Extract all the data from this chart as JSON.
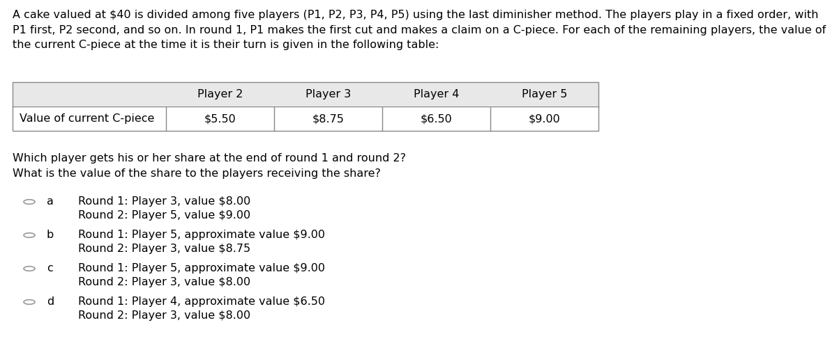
{
  "background_color": "#ffffff",
  "paragraph_text": "A cake valued at $40 is divided among five players (P1, P2, P3, P4, P5) using the last diminisher method. The players play in a fixed order, with\nP1 first, P2 second, and so on. In round 1, P1 makes the first cut and makes a claim on a C-piece. For each of the remaining players, the value of\nthe current C-piece at the time it is their turn is given in the following table:",
  "table_col0_label": "Value of current C-piece",
  "table_headers": [
    "Player 2",
    "Player 3",
    "Player 4",
    "Player 5"
  ],
  "table_values": [
    "$5.50",
    "$8.75",
    "$6.50",
    "$9.00"
  ],
  "header_bg_color": "#e8e8e8",
  "question_text": "Which player gets his or her share at the end of round 1 and round 2?\nWhat is the value of the share to the players receiving the share?",
  "options": [
    {
      "label": "a",
      "line1": "Round 1: Player 3, value $8.00",
      "line2": "Round 2: Player 5, value $9.00"
    },
    {
      "label": "b",
      "line1": "Round 1: Player 5, approximate value $9.00",
      "line2": "Round 2: Player 3, value $8.75"
    },
    {
      "label": "c",
      "line1": "Round 1: Player 5, approximate value $9.00",
      "line2": "Round 2: Player 3, value $8.00"
    },
    {
      "label": "d",
      "line1": "Round 1: Player 4, approximate value $6.50",
      "line2": "Round 2: Player 3, value $8.00"
    }
  ],
  "font_size": 11.5,
  "font_family": "DejaVu Sans",
  "fig_width": 12.0,
  "fig_height": 4.9,
  "dpi": 100
}
